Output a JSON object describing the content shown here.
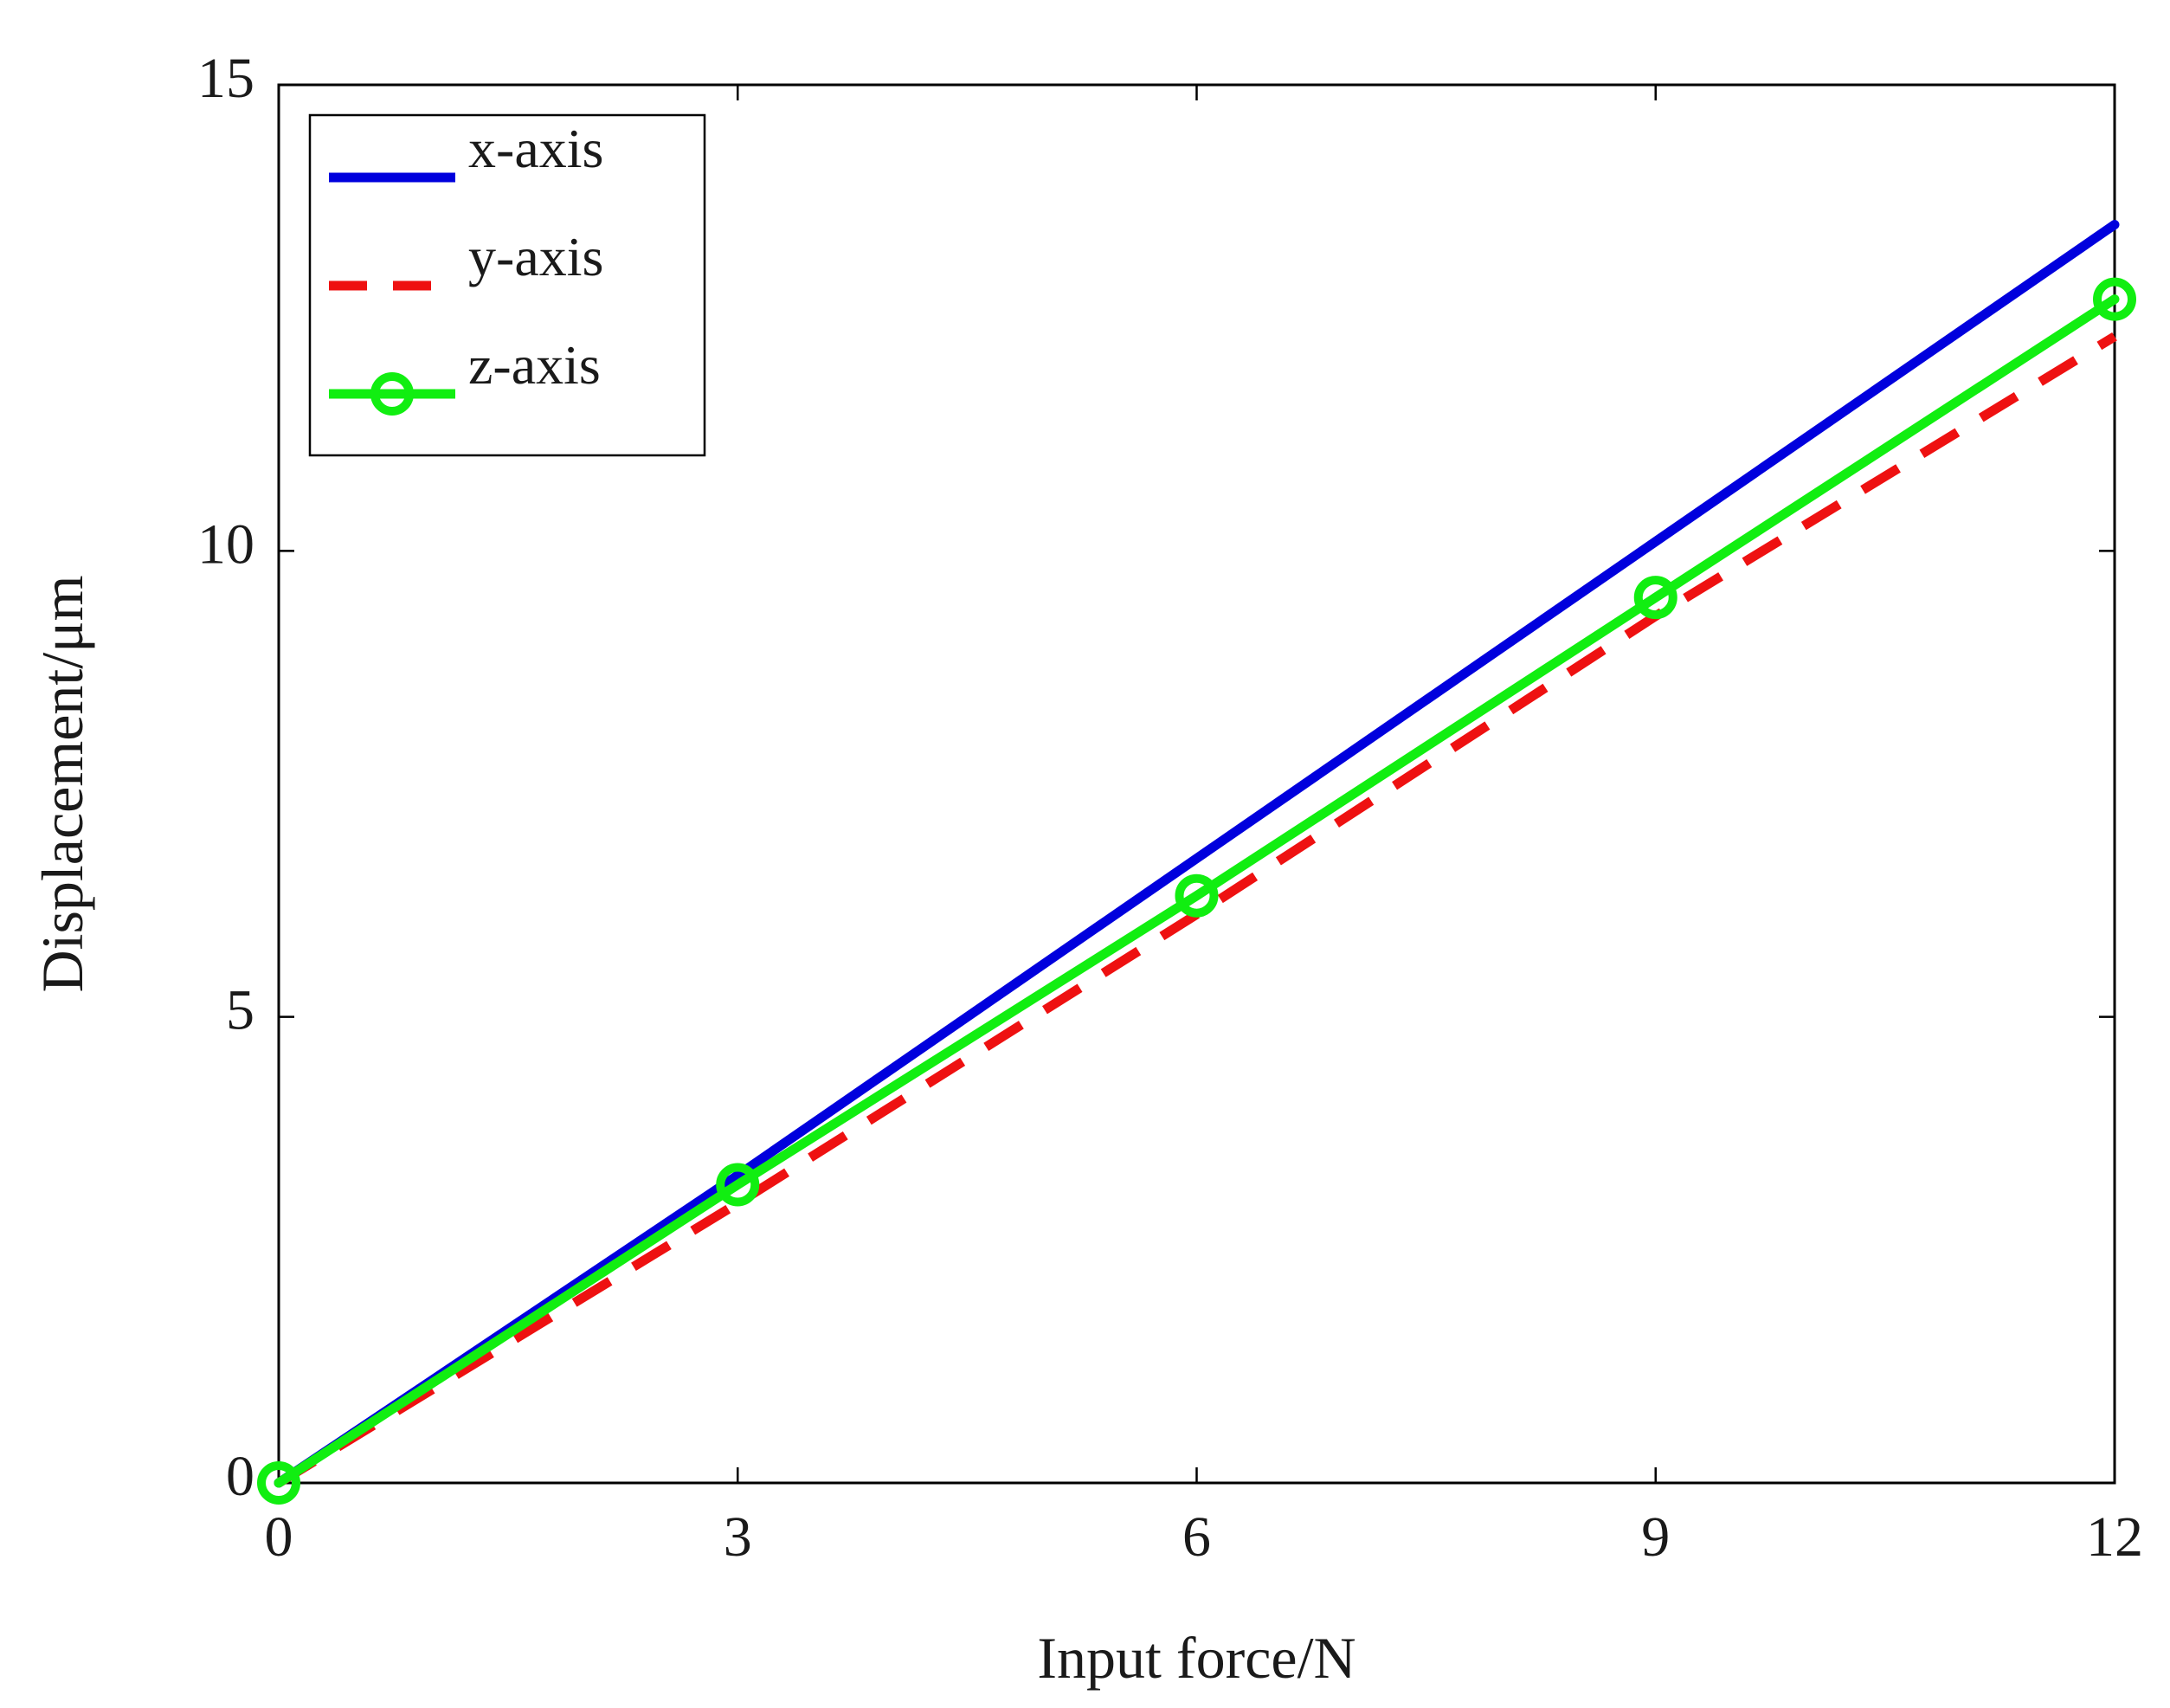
{
  "chart_data": {
    "type": "line",
    "title": "",
    "xlabel": "Input force/N",
    "ylabel": "Displacement/μm",
    "xlim": [
      0,
      12
    ],
    "ylim": [
      0,
      15
    ],
    "xticks": [
      "0",
      "3",
      "6",
      "9",
      "12"
    ],
    "yticks": [
      "0",
      "5",
      "10",
      "15"
    ],
    "grid": false,
    "legend_position": "top-left",
    "x": [
      0,
      3,
      6,
      9,
      12
    ],
    "series": [
      {
        "name": "x-axis",
        "values": [
          0,
          3.3,
          6.7,
          10.1,
          13.5
        ],
        "color": "#0000dd",
        "line_style": "solid",
        "marker": "none"
      },
      {
        "name": "y-axis",
        "values": [
          0,
          3.0,
          6.1,
          9.3,
          12.3
        ],
        "color": "#ee1111",
        "line_style": "dashed",
        "marker": "none"
      },
      {
        "name": "z-axis",
        "values": [
          0,
          3.2,
          6.3,
          9.5,
          12.7
        ],
        "color": "#11ee11",
        "line_style": "solid",
        "marker": "circle"
      }
    ]
  }
}
